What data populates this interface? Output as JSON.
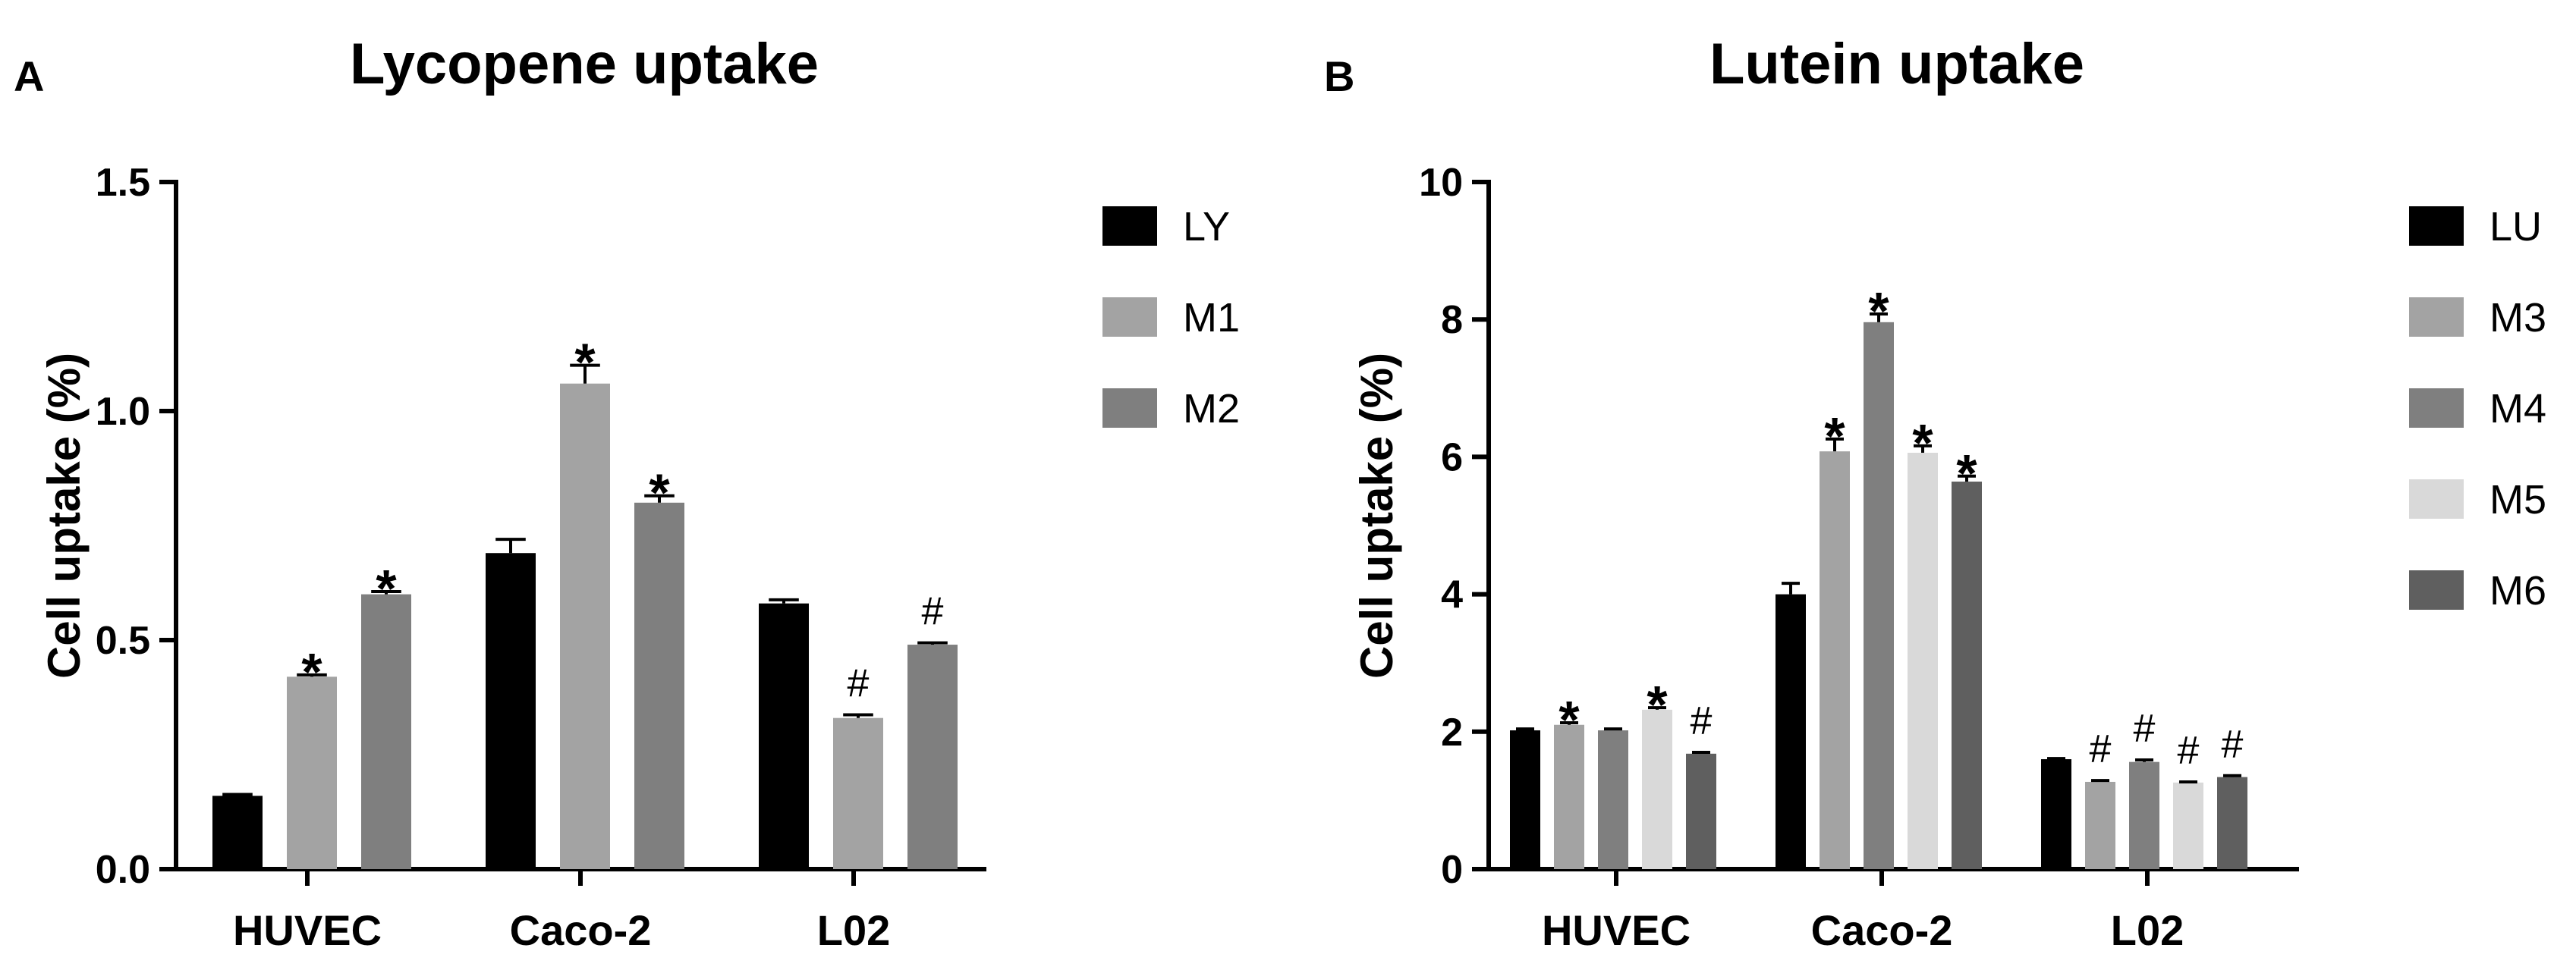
{
  "chart_data": [
    {
      "type": "bar",
      "panel": "A",
      "title": "Lycopene uptake",
      "ylabel": "Cell uptake (%)",
      "xlabel": "",
      "ylim": [
        0,
        1.5
      ],
      "yticks": [
        "0.0",
        "0.5",
        "1.0",
        "1.5"
      ],
      "ytick_values": [
        0,
        0.5,
        1.0,
        1.5
      ],
      "categories": [
        "HUVEC",
        "Caco-2",
        "L02"
      ],
      "legend_position": "right",
      "series": [
        {
          "name": "LY",
          "color": "#000000",
          "values": [
            0.16,
            0.69,
            0.58
          ],
          "errors": [
            0.003,
            0.03,
            0.008
          ],
          "marks": [
            "",
            "",
            ""
          ]
        },
        {
          "name": "M1",
          "color": "#a3a3a3",
          "values": [
            0.42,
            1.06,
            0.33
          ],
          "errors": [
            0.004,
            0.04,
            0.007
          ],
          "marks": [
            "*",
            "*",
            "#"
          ]
        },
        {
          "name": "M2",
          "color": "#7f7f7f",
          "values": [
            0.6,
            0.8,
            0.49
          ],
          "errors": [
            0.006,
            0.015,
            0.004
          ],
          "marks": [
            "*",
            "*",
            "#"
          ]
        }
      ]
    },
    {
      "type": "bar",
      "panel": "B",
      "title": "Lutein uptake",
      "ylabel": "Cell uptake (%)",
      "xlabel": "",
      "ylim": [
        0,
        10
      ],
      "yticks": [
        "0",
        "2",
        "4",
        "6",
        "8",
        "10"
      ],
      "ytick_values": [
        0,
        2,
        4,
        6,
        8,
        10
      ],
      "categories": [
        "HUVEC",
        "Caco-2",
        "L02"
      ],
      "legend_position": "right",
      "series": [
        {
          "name": "LU",
          "color": "#000000",
          "values": [
            2.02,
            4.0,
            1.6
          ],
          "errors": [
            0.02,
            0.16,
            0.01
          ],
          "marks": [
            "",
            "",
            ""
          ]
        },
        {
          "name": "M3",
          "color": "#a3a3a3",
          "values": [
            2.1,
            6.08,
            1.27
          ],
          "errors": [
            0.03,
            0.18,
            0.02
          ],
          "marks": [
            "*",
            "*",
            "#"
          ]
        },
        {
          "name": "M4",
          "color": "#7f7f7f",
          "values": [
            2.02,
            7.96,
            1.56
          ],
          "errors": [
            0.02,
            0.12,
            0.03
          ],
          "marks": [
            "",
            "*",
            "#"
          ]
        },
        {
          "name": "M5",
          "color": "#d9d9d9",
          "values": [
            2.32,
            6.06,
            1.26
          ],
          "errors": [
            0.03,
            0.1,
            0.01
          ],
          "marks": [
            "*",
            "*",
            "#"
          ]
        },
        {
          "name": "M6",
          "color": "#5f5f5f",
          "values": [
            1.68,
            5.64,
            1.34
          ],
          "errors": [
            0.02,
            0.08,
            0.02
          ],
          "marks": [
            "#",
            "*",
            "#"
          ]
        }
      ]
    }
  ]
}
